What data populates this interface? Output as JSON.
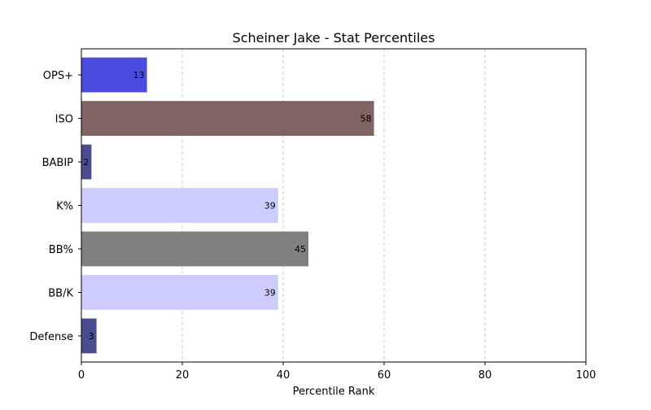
{
  "chart_data": {
    "type": "bar",
    "orientation": "horizontal",
    "title": "Scheiner Jake - Stat Percentiles",
    "xlabel": "Percentile Rank",
    "ylabel": "",
    "xlim": [
      0,
      100
    ],
    "xticks": [
      0,
      20,
      40,
      60,
      80,
      100
    ],
    "grid": "x-dashed",
    "categories": [
      "OPS+",
      "ISO",
      "BABIP",
      "K%",
      "BB%",
      "BB/K",
      "Defense"
    ],
    "values": [
      13,
      58,
      2,
      39,
      45,
      39,
      3
    ],
    "colors": [
      "#4b4bdf",
      "#806464",
      "#4b4b8f",
      "#ccccff",
      "#808080",
      "#ccccff",
      "#4b4b8f"
    ]
  }
}
